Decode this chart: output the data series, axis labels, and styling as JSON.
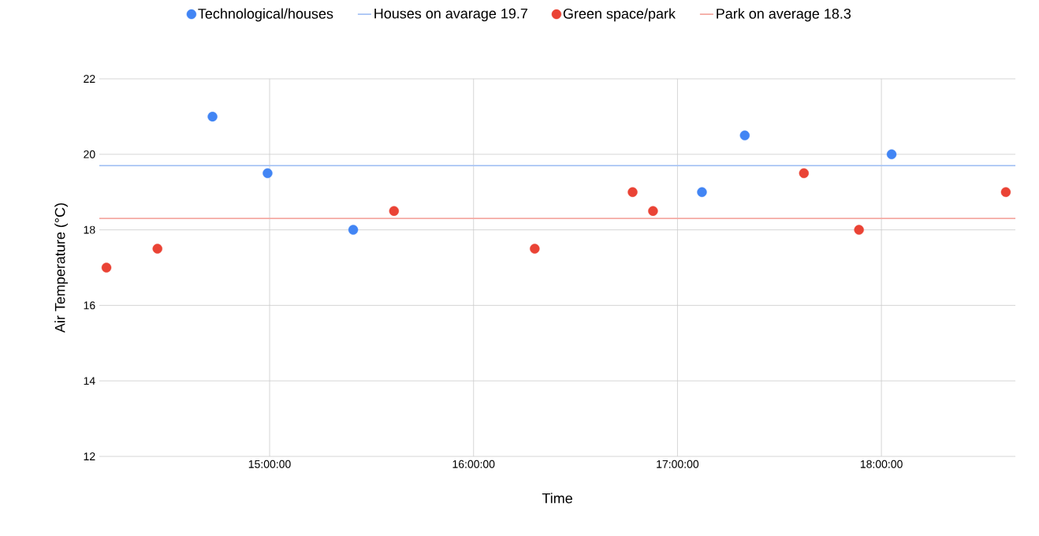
{
  "chart_data": {
    "type": "scatter",
    "xlabel": "Time",
    "ylabel": "Air Temperature (°C)",
    "xlim": [
      14.165,
      18.657
    ],
    "ylim": [
      12,
      22
    ],
    "xticks": [
      {
        "value": 15,
        "label": "15:00:00"
      },
      {
        "value": 16,
        "label": "16:00:00"
      },
      {
        "value": 17,
        "label": "17:00:00"
      },
      {
        "value": 18,
        "label": "18:00:00"
      }
    ],
    "yticks": [
      12,
      14,
      16,
      18,
      20,
      22
    ],
    "grid": true,
    "legend": "top",
    "marker": "circle",
    "series": [
      {
        "name": "Technological/houses",
        "color": "#4285f4",
        "x": [
          14.72,
          14.99,
          15.41,
          17.12,
          17.33,
          18.05
        ],
        "values": [
          21,
          19.5,
          18,
          19,
          20.5,
          20
        ]
      },
      {
        "name": "Green space/park",
        "color": "#ea4335",
        "x": [
          14.2,
          14.45,
          15.61,
          16.3,
          16.78,
          16.88,
          17.62,
          17.89,
          18.61
        ],
        "values": [
          17,
          17.5,
          18.5,
          17.5,
          19,
          18.5,
          19.5,
          18,
          19
        ]
      }
    ],
    "ref_lines": [
      {
        "axis": "y",
        "value": 19.7,
        "label": "Houses on avarage 19.7",
        "color": "#a8c4f5"
      },
      {
        "axis": "y",
        "value": 18.3,
        "label": "Park on average 18.3",
        "color": "#f4aaa3"
      }
    ]
  }
}
